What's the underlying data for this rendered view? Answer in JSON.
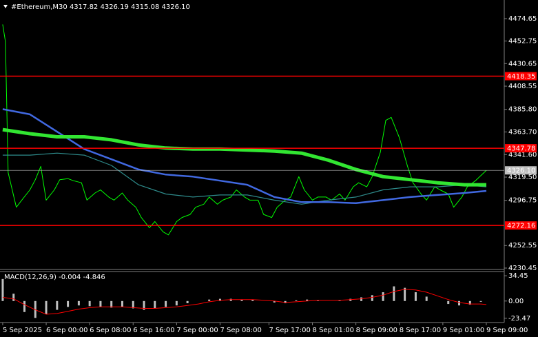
{
  "chart_data": [
    {
      "type": "line",
      "title": "#Ethereum,M30  4317.82 4326.19 4315.08 4326.10",
      "xlim": [
        -1,
        184.6
      ],
      "ylim": [
        4229.1,
        4492.9
      ],
      "yticks": [
        4474.65,
        4452.75,
        4430.65,
        {
          "value": 4408.55,
          "label": "4408.55"
        },
        {
          "value": 4385.8,
          "label": "4385.80"
        },
        {
          "value": 4363.7,
          "label": "4363.70"
        },
        {
          "value": 4341.6,
          "label": "4341.60"
        },
        {
          "value": 4319.5,
          "label": "4319.50"
        },
        4296.75,
        4252.55,
        4230.45
      ],
      "levels": [
        {
          "value": 4418.35,
          "color": "#ff0000"
        },
        {
          "value": 4347.78,
          "color": "#ff0000"
        },
        {
          "value": 4272.16,
          "color": "#ff0000"
        },
        {
          "value": {
            "value": 4326.1,
            "label": "4326.10"
          },
          "color": "#c0c0c0"
        }
      ],
      "series": [
        {
          "color": "#00ff00",
          "width": 1,
          "x": [
            0,
            1,
            2,
            5,
            7,
            10,
            12,
            14,
            16,
            19,
            21,
            24,
            26,
            29,
            31,
            34,
            36,
            39,
            41,
            44,
            46,
            49,
            51,
            54,
            56,
            59,
            61,
            64,
            66,
            69,
            71,
            74,
            76,
            79,
            81,
            84,
            86,
            89,
            91,
            94,
            96,
            99,
            101,
            104,
            106,
            109,
            111,
            114,
            116,
            119,
            121,
            124,
            126,
            129,
            131,
            134,
            136,
            139,
            141,
            143,
            146,
            149,
            151,
            154,
            156,
            159,
            161,
            164,
            166,
            169,
            171,
            174,
            178
          ],
          "values": [
            4469,
            4452,
            4324,
            4290,
            4297,
            4307,
            4317,
            4330,
            4297,
            4307,
            4317,
            4318,
            4316,
            4314,
            4297,
            4304,
            4307,
            4300,
            4297,
            4304,
            4297,
            4290,
            4280,
            4270,
            4276,
            4266,
            4263,
            4276,
            4280,
            4283,
            4290,
            4293,
            4300,
            4293,
            4297,
            4300,
            4307,
            4300,
            4297,
            4297,
            4283,
            4280,
            4290,
            4297,
            4300,
            4320,
            4307,
            4297,
            4300,
            4300,
            4297,
            4303,
            4297,
            4310,
            4314,
            4310,
            4320,
            4344,
            4375,
            4378,
            4358,
            4330,
            4314,
            4303,
            4297,
            4310,
            4307,
            4303,
            4290,
            4300,
            4310,
            4316,
            4326.1
          ]
        },
        {
          "color": "#2e8b8b",
          "width": 1.2,
          "x": [
            0,
            10,
            20,
            30,
            40,
            50,
            60,
            70,
            80,
            90,
            100,
            110,
            120,
            130,
            140,
            150,
            160,
            170,
            178
          ],
          "values": [
            4341,
            4341,
            4343,
            4341,
            4331,
            4312,
            4303,
            4300,
            4302,
            4302,
            4297,
            4293,
            4297,
            4300,
            4307,
            4310,
            4310,
            4312,
            4310
          ]
        },
        {
          "color": "#4169e1",
          "width": 2.5,
          "x": [
            0,
            10,
            20,
            30,
            40,
            50,
            60,
            70,
            80,
            90,
            100,
            110,
            120,
            130,
            140,
            150,
            160,
            170,
            178
          ],
          "values": [
            4386,
            4381,
            4364,
            4347,
            4337,
            4327,
            4322,
            4320,
            4316,
            4312,
            4300,
            4295,
            4295,
            4294,
            4297,
            4300,
            4302,
            4304,
            4306
          ]
        },
        {
          "color": "#32e632",
          "width": 5,
          "x": [
            0,
            10,
            20,
            30,
            40,
            50,
            60,
            70,
            80,
            90,
            100,
            110,
            120,
            130,
            140,
            150,
            160,
            170,
            178
          ],
          "values": [
            4366,
            4362,
            4359,
            4359,
            4356,
            4351,
            4348,
            4347,
            4347,
            4346,
            4345,
            4343,
            4336,
            4327,
            4320,
            4317,
            4314,
            4312,
            4312
          ]
        }
      ]
    },
    {
      "type": "macd",
      "title": "MACD(12,26,9) -0.004 -4.846",
      "xlim": [
        -1,
        184.6
      ],
      "ylim": [
        -29.3,
        40.2
      ],
      "yticks": [
        34.45,
        {
          "value": 0,
          "label": "0.00"
        },
        -23.47
      ],
      "xticks": [
        {
          "value": 0,
          "label": "5 Sep 2025"
        },
        {
          "value": 16,
          "label": "6 Sep 00:00"
        },
        {
          "value": 32,
          "label": "6 Sep 08:00"
        },
        {
          "value": 48,
          "label": "6 Sep 16:00"
        },
        {
          "value": 64,
          "label": "7 Sep 00:00"
        },
        {
          "value": 80,
          "label": "7 Sep 08:00"
        },
        {
          "value": 98,
          "label": "7 Sep 17:00"
        },
        {
          "value": 114,
          "label": "8 Sep 01:00"
        },
        {
          "value": 130,
          "label": "8 Sep 09:00"
        },
        {
          "value": 146,
          "label": "8 Sep 17:00"
        },
        {
          "value": 162,
          "label": "9 Sep 01:00"
        },
        {
          "value": 178,
          "label": "9 Sep 09:00"
        }
      ],
      "x": [
        0,
        4,
        8,
        12,
        16,
        20,
        24,
        28,
        32,
        36,
        40,
        44,
        48,
        52,
        56,
        60,
        64,
        68,
        72,
        76,
        80,
        84,
        88,
        92,
        96,
        100,
        104,
        108,
        112,
        116,
        120,
        124,
        128,
        132,
        136,
        140,
        144,
        148,
        152,
        156,
        160,
        164,
        168,
        172,
        176,
        178
      ],
      "series": [
        {
          "color": "#c0c0c0",
          "values": [
            30,
            10,
            -15,
            -23,
            -18,
            -12,
            -8,
            -6,
            -7,
            -8,
            -9,
            -8,
            -10,
            -12,
            -10,
            -8,
            -6,
            -3,
            0,
            2,
            3,
            3,
            2,
            2,
            0,
            -2,
            -3,
            1,
            2,
            1,
            0,
            1,
            3,
            5,
            8,
            12,
            20,
            18,
            12,
            6,
            0,
            -4,
            -6,
            -5,
            -1,
            0
          ]
        },
        {
          "color": "#ff0000",
          "values": [
            5,
            3,
            -5,
            -12,
            -18,
            -17,
            -14,
            -11,
            -9,
            -8,
            -8,
            -8,
            -9,
            -10,
            -10,
            -9,
            -8,
            -6,
            -4,
            -1,
            1,
            2,
            2,
            2,
            1,
            0,
            -2,
            -1,
            0,
            1,
            1,
            1,
            2,
            3,
            5,
            8,
            13,
            16,
            15,
            12,
            7,
            2,
            -2,
            -4,
            -4,
            -4.8
          ]
        }
      ]
    }
  ]
}
